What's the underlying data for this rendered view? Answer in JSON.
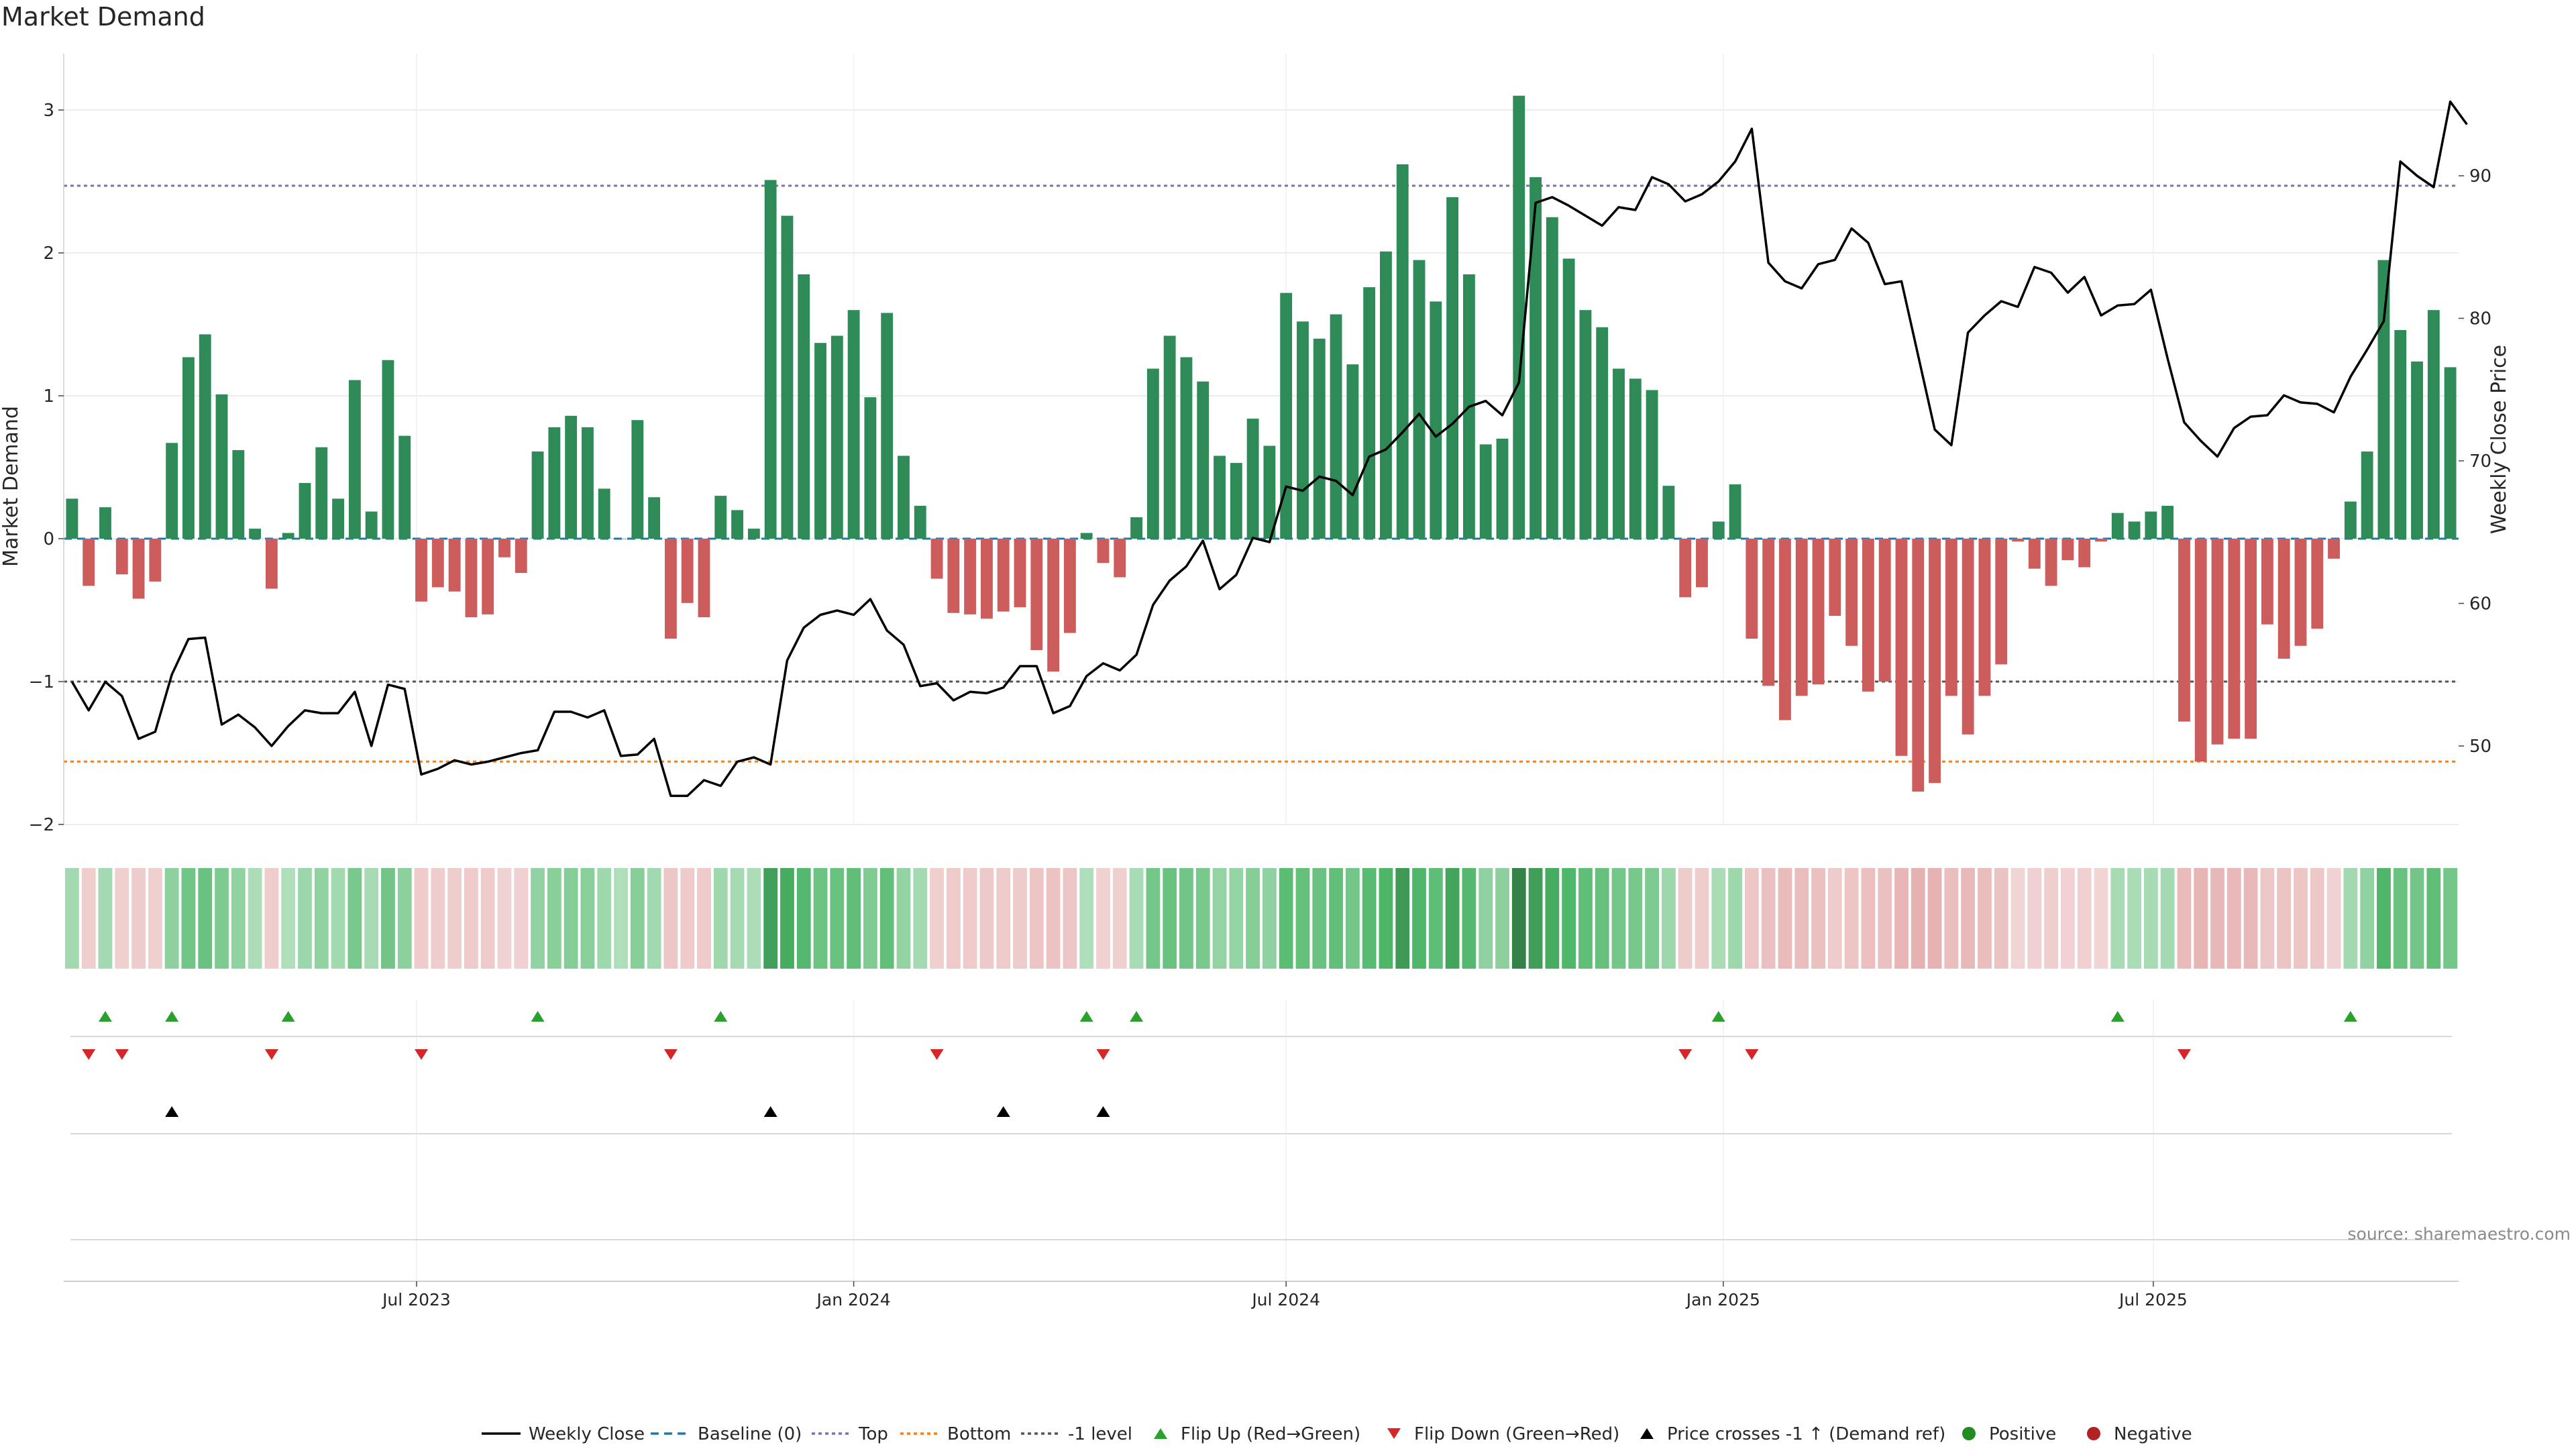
{
  "chart_data": {
    "type": "bar",
    "title": "Market Demand",
    "ylabel": "Market Demand",
    "ylabel_right": "Weekly Close Price",
    "ylim": [
      -2.3,
      3.4
    ],
    "ylim_right": [
      43,
      98
    ],
    "yticks": [
      -2,
      -1,
      0,
      1,
      2,
      3
    ],
    "yticks_labels": [
      "−2",
      "−1",
      "0",
      "1",
      "2",
      "3"
    ],
    "yticks_right": [
      50,
      60,
      70,
      80,
      90
    ],
    "levels": {
      "top": 2.47,
      "bottom": -1.56,
      "minus_one": -1
    },
    "x_start": "2023-02-06",
    "week_count": 144,
    "xticks": [
      "2023-07-01",
      "2024-01-01",
      "2024-07-01",
      "2025-01-01",
      "2025-07-01"
    ],
    "xtick_labels": [
      "Jul 2023",
      "Jan 2024",
      "Jul 2024",
      "Jan 2025",
      "Jul 2025"
    ],
    "demand": [
      0.28,
      -0.33,
      0.22,
      -0.25,
      -0.42,
      -0.3,
      0.67,
      1.27,
      1.43,
      1.01,
      0.62,
      0.07,
      -0.35,
      0.04,
      0.39,
      0.64,
      0.28,
      1.11,
      0.19,
      1.25,
      0.72,
      -0.44,
      -0.34,
      -0.37,
      -0.55,
      -0.53,
      -0.13,
      -0.24,
      0.61,
      0.78,
      0.86,
      0.78,
      0.35,
      0.0,
      0.83,
      0.29,
      -0.7,
      -0.45,
      -0.55,
      0.3,
      0.2,
      0.07,
      2.51,
      2.26,
      1.85,
      1.37,
      1.42,
      1.6,
      0.99,
      1.58,
      0.58,
      0.23,
      -0.28,
      -0.52,
      -0.53,
      -0.56,
      -0.51,
      -0.48,
      -0.78,
      -0.93,
      -0.66,
      0.04,
      -0.17,
      -0.27,
      0.15,
      1.19,
      1.42,
      1.27,
      1.1,
      0.58,
      0.53,
      0.84,
      0.65,
      1.72,
      1.52,
      1.4,
      1.57,
      1.22,
      1.76,
      2.01,
      2.62,
      1.95,
      1.66,
      2.39,
      1.85,
      0.66,
      0.7,
      3.1,
      2.53,
      2.25,
      1.96,
      1.6,
      1.48,
      1.19,
      1.12,
      1.04,
      0.37,
      -0.41,
      -0.34,
      0.12,
      0.38,
      -0.7,
      -1.03,
      -1.27,
      -1.1,
      -1.02,
      -0.54,
      -0.75,
      -1.07,
      -1.0,
      -1.52,
      -1.77,
      -1.71,
      -1.1,
      -1.37,
      -1.1,
      -0.88,
      -0.02,
      -0.21,
      -0.33,
      -0.15,
      -0.2,
      -0.02,
      0.18,
      0.12,
      0.19,
      0.23,
      -1.28,
      -1.56,
      -1.44,
      -1.4,
      -1.4,
      -0.6,
      -0.84,
      -0.75,
      -0.63,
      -0.14,
      0.26,
      0.61,
      1.95,
      1.46,
      1.24,
      1.6,
      1.2
    ],
    "weekly_close": [
      54.5,
      52.5,
      54.5,
      53.5,
      50.5,
      51.0,
      55.0,
      57.5,
      57.6,
      51.5,
      52.2,
      51.3,
      50.0,
      51.4,
      52.5,
      52.3,
      52.3,
      53.8,
      50.0,
      54.3,
      54.0,
      48.0,
      48.4,
      49.0,
      48.7,
      48.9,
      49.2,
      49.5,
      49.7,
      52.4,
      52.4,
      52.0,
      52.5,
      49.3,
      49.4,
      50.5,
      46.5,
      46.5,
      47.6,
      47.2,
      48.9,
      49.2,
      48.7,
      56.0,
      58.3,
      59.2,
      59.5,
      59.2,
      60.3,
      58.1,
      57.1,
      54.2,
      54.4,
      53.2,
      53.8,
      53.7,
      54.1,
      55.6,
      55.6,
      52.3,
      52.8,
      54.9,
      55.8,
      55.3,
      56.4,
      59.9,
      61.6,
      62.6,
      64.4,
      61.0,
      62.0,
      64.6,
      64.3,
      68.2,
      67.9,
      68.9,
      68.6,
      67.6,
      70.3,
      70.8,
      72.0,
      73.3,
      71.7,
      72.6,
      73.8,
      74.2,
      73.2,
      75.5,
      88.1,
      88.5,
      87.9,
      87.2,
      86.5,
      87.8,
      87.6,
      89.9,
      89.4,
      88.2,
      88.7,
      89.6,
      91.0,
      93.3,
      83.9,
      82.6,
      82.1,
      83.8,
      84.1,
      86.3,
      85.3,
      82.4,
      82.6,
      77.4,
      72.2,
      71.1,
      79.0,
      80.2,
      81.2,
      80.8,
      83.6,
      83.2,
      81.8,
      82.9,
      80.2,
      80.9,
      81.0,
      82.0,
      77.2,
      72.7,
      71.4,
      70.3,
      72.3,
      73.1,
      73.2,
      74.6,
      74.1,
      74.0,
      73.4,
      75.9,
      77.8,
      79.8,
      91.0,
      90.0,
      89.2,
      95.2,
      93.6
    ],
    "flip_up_idx": [
      2,
      6,
      13,
      28,
      39,
      61,
      64,
      99,
      123,
      137
    ],
    "flip_down_idx": [
      1,
      3,
      12,
      21,
      36,
      52,
      62,
      97,
      101,
      127
    ],
    "price_cross_idx": [
      6,
      42,
      56,
      62
    ],
    "legend": [
      "Weekly Close",
      "Baseline (0)",
      "Top",
      "Bottom",
      "-1 level",
      "Flip Up (Red→Green)",
      "Flip Down (Green→Red)",
      "Price crosses -1 ↑ (Demand ref)",
      "Positive",
      "Negative"
    ],
    "colors": {
      "positive": "#2e8b57",
      "negative": "#cd5c5c",
      "line": "#000000",
      "baseline": "#1f77b4",
      "top": "#7b6fb8",
      "bottom": "#ff7f0e",
      "minus_one": "#555555",
      "flip_up": "#2ca02c",
      "flip_down": "#d62728",
      "cross": "#000000",
      "positive_dot": "#228b22",
      "negative_dot": "#b22222"
    }
  },
  "source": "source: sharemaestro.com"
}
